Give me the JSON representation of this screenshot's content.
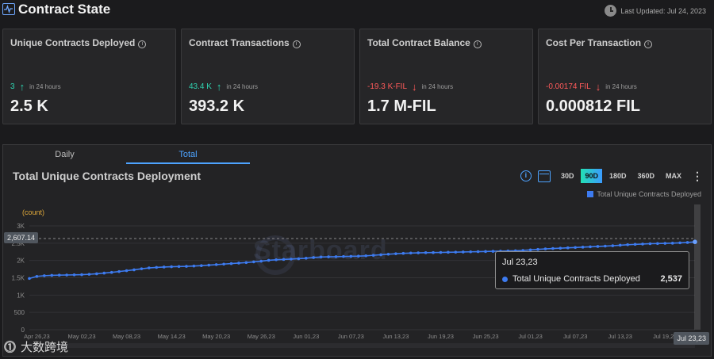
{
  "header": {
    "title": "Contract State",
    "last_updated": "Last Updated: Jul 24, 2023"
  },
  "cards": [
    {
      "title": "Unique Contracts Deployed",
      "delta": "3",
      "trend": "up",
      "period": "in 24 hours",
      "value": "2.5 K"
    },
    {
      "title": "Contract Transactions",
      "delta": "43.4 K",
      "trend": "up",
      "period": "in 24 hours",
      "value": "393.2 K"
    },
    {
      "title": "Total Contract Balance",
      "delta": "-19.3 K-FIL",
      "trend": "down",
      "period": "in 24 hours",
      "value": "1.7 M-FIL"
    },
    {
      "title": "Cost Per Transaction",
      "delta": "-0.00174 FIL",
      "trend": "down",
      "period": "in 24 hours",
      "value": "0.000812 FIL"
    }
  ],
  "tabs": [
    {
      "label": "Daily",
      "active": false
    },
    {
      "label": "Total",
      "active": true
    }
  ],
  "chart_title": "Total Unique Contracts Deployment",
  "range_buttons": [
    {
      "label": "30D",
      "active": false
    },
    {
      "label": "90D",
      "active": true
    },
    {
      "label": "180D",
      "active": false
    },
    {
      "label": "360D",
      "active": false
    },
    {
      "label": "MAX",
      "active": false
    }
  ],
  "legend_label": "Total Unique Contracts Deployed",
  "watermark": "Starboard",
  "crosshair_value": "2,607.14",
  "x_pointer": "Jul 23,23",
  "tooltip": {
    "date": "Jul 23,23",
    "series": "Total Unique Contracts Deployed",
    "value": "2,537"
  },
  "colors": {
    "series": "#3d7bf0",
    "up": "#2fd3b0",
    "down": "#ff5a5a",
    "accent": "#4da3ff"
  },
  "bottom_logo": "大数跨境",
  "chart_data": {
    "type": "line",
    "ylabel": "(count)",
    "ylim": [
      0,
      3000
    ],
    "yticks": [
      0,
      500,
      1000,
      1500,
      2000,
      2500,
      3000
    ],
    "ytick_labels": [
      "0",
      "500",
      "1K",
      "1.5K",
      "2K",
      "2.5K",
      "3K"
    ],
    "xtick_labels": [
      "Apr 26,23",
      "May 02,23",
      "May 08,23",
      "May 14,23",
      "May 20,23",
      "May 26,23",
      "Jun 01,23",
      "Jun 07,23",
      "Jun 13,23",
      "Jun 19,23",
      "Jun 25,23",
      "Jul 01,23",
      "Jul 07,23",
      "Jul 13,23",
      "Jul 19,23"
    ],
    "x": [
      "Apr 25,23",
      "Apr 26,23",
      "Apr 27,23",
      "Apr 28,23",
      "Apr 29,23",
      "Apr 30,23",
      "May 01,23",
      "May 02,23",
      "May 03,23",
      "May 04,23",
      "May 05,23",
      "May 06,23",
      "May 07,23",
      "May 08,23",
      "May 09,23",
      "May 10,23",
      "May 11,23",
      "May 12,23",
      "May 13,23",
      "May 14,23",
      "May 15,23",
      "May 16,23",
      "May 17,23",
      "May 18,23",
      "May 19,23",
      "May 20,23",
      "May 21,23",
      "May 22,23",
      "May 23,23",
      "May 24,23",
      "May 25,23",
      "May 26,23",
      "May 27,23",
      "May 28,23",
      "May 29,23",
      "May 30,23",
      "May 31,23",
      "Jun 01,23",
      "Jun 02,23",
      "Jun 03,23",
      "Jun 04,23",
      "Jun 05,23",
      "Jun 06,23",
      "Jun 07,23",
      "Jun 08,23",
      "Jun 09,23",
      "Jun 10,23",
      "Jun 11,23",
      "Jun 12,23",
      "Jun 13,23",
      "Jun 14,23",
      "Jun 15,23",
      "Jun 16,23",
      "Jun 17,23",
      "Jun 18,23",
      "Jun 19,23",
      "Jun 20,23",
      "Jun 21,23",
      "Jun 22,23",
      "Jun 23,23",
      "Jun 24,23",
      "Jun 25,23",
      "Jun 26,23",
      "Jun 27,23",
      "Jun 28,23",
      "Jun 29,23",
      "Jun 30,23",
      "Jul 01,23",
      "Jul 02,23",
      "Jul 03,23",
      "Jul 04,23",
      "Jul 05,23",
      "Jul 06,23",
      "Jul 07,23",
      "Jul 08,23",
      "Jul 09,23",
      "Jul 10,23",
      "Jul 11,23",
      "Jul 12,23",
      "Jul 13,23",
      "Jul 14,23",
      "Jul 15,23",
      "Jul 16,23",
      "Jul 17,23",
      "Jul 18,23",
      "Jul 19,23",
      "Jul 20,23",
      "Jul 21,23",
      "Jul 22,23",
      "Jul 23,23"
    ],
    "series": [
      {
        "name": "Total Unique Contracts Deployed",
        "values": [
          1480,
          1540,
          1560,
          1570,
          1575,
          1580,
          1585,
          1590,
          1600,
          1615,
          1635,
          1655,
          1680,
          1705,
          1730,
          1760,
          1785,
          1800,
          1810,
          1820,
          1825,
          1830,
          1840,
          1850,
          1865,
          1880,
          1895,
          1910,
          1925,
          1940,
          1960,
          1980,
          2005,
          2020,
          2030,
          2040,
          2050,
          2065,
          2085,
          2100,
          2105,
          2110,
          2115,
          2120,
          2125,
          2135,
          2150,
          2165,
          2180,
          2195,
          2205,
          2215,
          2220,
          2225,
          2228,
          2232,
          2236,
          2240,
          2245,
          2250,
          2255,
          2260,
          2265,
          2270,
          2275,
          2280,
          2290,
          2305,
          2320,
          2335,
          2345,
          2355,
          2365,
          2375,
          2385,
          2395,
          2405,
          2415,
          2425,
          2440,
          2455,
          2465,
          2475,
          2485,
          2490,
          2495,
          2500,
          2510,
          2520,
          2537
        ]
      }
    ]
  }
}
